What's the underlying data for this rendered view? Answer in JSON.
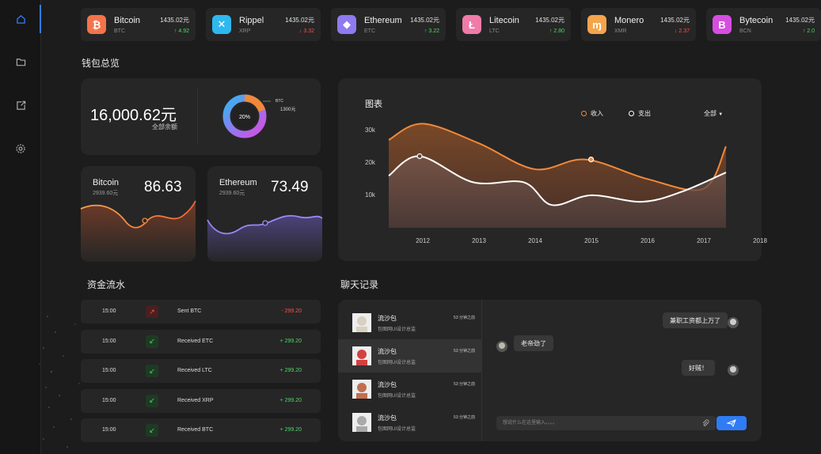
{
  "sidebar": {
    "items": [
      {
        "icon": "home-icon",
        "active": true
      },
      {
        "icon": "folder-icon",
        "active": false
      },
      {
        "icon": "share-icon",
        "active": false
      },
      {
        "icon": "gear-icon",
        "active": false
      }
    ]
  },
  "tickers": [
    {
      "name": "Bitcoin",
      "symbol": "BTC",
      "price": "1435.02元",
      "change": "↑ 4.92",
      "dir": "up",
      "icon_char": "₿",
      "color": "#f4734b"
    },
    {
      "name": "Rippel",
      "symbol": "XRP",
      "price": "1435.02元",
      "change": "↓ 3.32",
      "dir": "down",
      "icon_char": "✕",
      "color": "#2fb8f0"
    },
    {
      "name": "Ethereum",
      "symbol": "ETC",
      "price": "1435.02元",
      "change": "↑ 3.22",
      "dir": "up",
      "icon_char": "◆",
      "color": "#8f7af0"
    },
    {
      "name": "Litecoin",
      "symbol": "LTC",
      "price": "1435.02元",
      "change": "↑ 2.80",
      "dir": "up",
      "icon_char": "Ł",
      "color": "#f07aa8"
    },
    {
      "name": "Monero",
      "symbol": "XMR",
      "price": "1435.02元",
      "change": "↓ 2.37",
      "dir": "down",
      "icon_char": "ɱ",
      "color": "#f5a54b"
    },
    {
      "name": "Bytecoin",
      "symbol": "BCN",
      "price": "1435.02元",
      "change": "↑ 2.0",
      "dir": "up",
      "icon_char": "B",
      "color": "#d64ee0"
    }
  ],
  "wallet": {
    "title": "钱包总览",
    "balance": "16,000.62元",
    "balance_label": "全部余额",
    "donut": {
      "center": "20%",
      "legend_symbol": "BTC",
      "legend_value": "1300元",
      "share": 20
    }
  },
  "coins": [
    {
      "name": "Bitcoin",
      "sub": "2939.60元",
      "value": "86.63"
    },
    {
      "name": "Ethereum",
      "sub": "2939.60元",
      "value": "73.49"
    }
  ],
  "chart": {
    "title": "图表",
    "legend_income": "收入",
    "legend_expense": "支出",
    "filter": "全部"
  },
  "chart_data": {
    "type": "area",
    "x": [
      "2012",
      "2013",
      "2014",
      "2015",
      "2016",
      "2017",
      "2018"
    ],
    "y_ticks": [
      "30k",
      "20k",
      "10k"
    ],
    "ylim": [
      0,
      35000
    ],
    "series": [
      {
        "name": "收入",
        "color": "#f0893a",
        "points": [
          [
            0,
            27000
          ],
          [
            0.6,
            32000
          ],
          [
            1.6,
            26000
          ],
          [
            2.6,
            18000
          ],
          [
            3.5,
            21000
          ],
          [
            4.6,
            15000
          ],
          [
            5.6,
            12000
          ],
          [
            6.0,
            25000
          ]
        ]
      },
      {
        "name": "支出",
        "color": "#ffffff",
        "points": [
          [
            0,
            16000
          ],
          [
            0.55,
            22000
          ],
          [
            1.5,
            14000
          ],
          [
            2.4,
            14000
          ],
          [
            2.9,
            7000
          ],
          [
            3.6,
            10000
          ],
          [
            4.5,
            8000
          ],
          [
            5.2,
            11000
          ],
          [
            6.0,
            17000
          ]
        ]
      }
    ],
    "markers": [
      {
        "series": 0,
        "x": 3.6,
        "y": 21000
      },
      {
        "series": 1,
        "x": 0.55,
        "y": 22000
      }
    ]
  },
  "flow": {
    "title": "资金流水",
    "rows": [
      {
        "time": "15:00",
        "label": "Sent BTC",
        "amount": "- 299.20",
        "dir": "out"
      },
      {
        "time": "15:00",
        "label": "Received ETC",
        "amount": "+ 299.20",
        "dir": "in"
      },
      {
        "time": "15:00",
        "label": "Received LTC",
        "amount": "+ 299.20",
        "dir": "in"
      },
      {
        "time": "15:00",
        "label": "Received XRP",
        "amount": "+ 299.20",
        "dir": "in"
      },
      {
        "time": "15:00",
        "label": "Received BTC",
        "amount": "+ 299.20",
        "dir": "in"
      }
    ]
  },
  "chat": {
    "title": "聊天记录",
    "contacts": [
      {
        "name": "流沙包",
        "sub": "包图网UI设计总监",
        "time": "53 分钟之前",
        "active": false,
        "avatar_color": "#d8d0c0"
      },
      {
        "name": "流沙包",
        "sub": "包图网UI设计总监",
        "time": "53 分钟之前",
        "active": true,
        "avatar_color": "#d24040"
      },
      {
        "name": "流沙包",
        "sub": "包图网UI设计总监",
        "time": "53 分钟之前",
        "active": false,
        "avatar_color": "#c07050"
      },
      {
        "name": "流沙包",
        "sub": "包图网UI设计总监",
        "time": "53 分钟之前",
        "active": false,
        "avatar_color": "#aaaaaa"
      }
    ],
    "messages": [
      {
        "text": "兼职工资都上万了",
        "side": "right"
      },
      {
        "text": "老帝劲了",
        "side": "left"
      },
      {
        "text": "好贼！",
        "side": "right"
      }
    ],
    "input_placeholder": "想说什么在这里输入。。。。"
  }
}
